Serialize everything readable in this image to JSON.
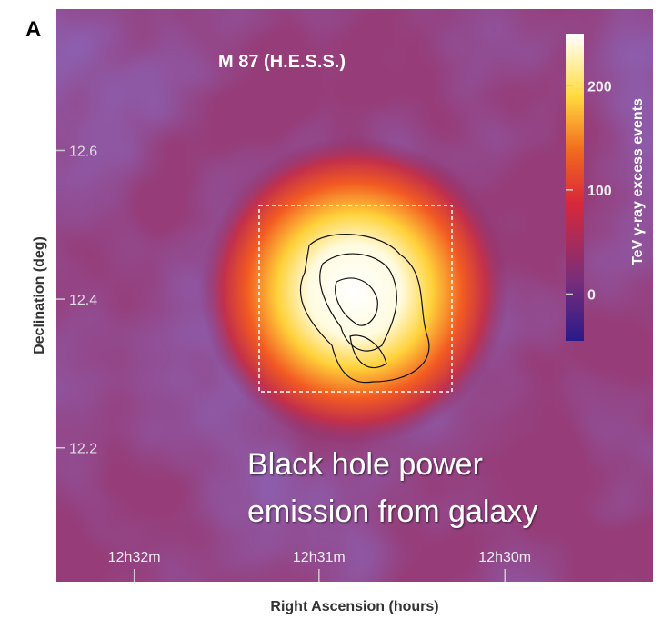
{
  "chart_data": {
    "type": "heatmap",
    "panel_label": "A",
    "title": "M 87 (H.E.S.S.)",
    "xlabel": "Right Ascension (hours)",
    "ylabel": "Declination (deg)",
    "xlim": [
      12.5403,
      12.4867
    ],
    "xticks": [
      {
        "value": 12.5333,
        "label": "12h32m"
      },
      {
        "value": 12.5167,
        "label": "12h31m"
      },
      {
        "value": 12.5,
        "label": "12h30m"
      }
    ],
    "ylim": [
      12.02,
      12.79
    ],
    "yticks": [
      12.2,
      12.4,
      12.6
    ],
    "colorbar_label": "TeV γ-ray excess events",
    "clim": [
      -45,
      250
    ],
    "cticks": [
      0,
      100,
      200
    ],
    "annotation": [
      "Black hole power",
      "emission from galaxy"
    ]
  }
}
